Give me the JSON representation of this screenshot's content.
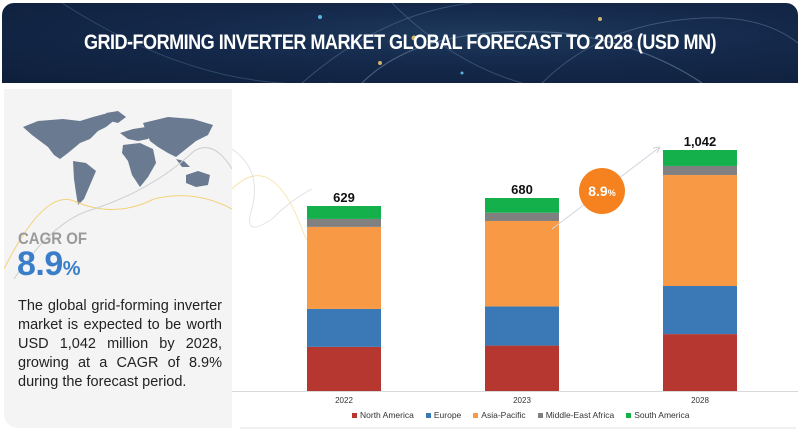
{
  "header": {
    "title": "GRID-FORMING INVERTER MARKET GLOBAL FORECAST TO 2028 (USD MN)"
  },
  "left_panel": {
    "map_icon": "world-map-icon",
    "cagr_label": "CAGR OF",
    "cagr_value": "8.9",
    "cagr_unit": "%",
    "summary": "The global grid-forming inverter market is expected to be worth USD 1,042 million by 2028, growing at a CAGR of 8.9% during the forecast period."
  },
  "colors": {
    "north_america": "#b5372f",
    "europe": "#3a78b6",
    "asia_pacific": "#f89a45",
    "middle_east_africa": "#808080",
    "south_america": "#14b04c",
    "cagr_badge": "#f5821f",
    "accent_blue": "#3a7dc9"
  },
  "chart_data": {
    "type": "bar",
    "stacked": true,
    "title": "GRID-FORMING INVERTER MARKET GLOBAL FORECAST TO 2028 (USD MN)",
    "xlabel": "",
    "ylabel": "",
    "categories": [
      "2022",
      "2023",
      "2028"
    ],
    "totals": [
      "629",
      "680",
      "1,042"
    ],
    "total_values": [
      629,
      680,
      1042
    ],
    "series": [
      {
        "name": "North America",
        "color": "#b5372f",
        "values": [
          150,
          160,
          246
        ]
      },
      {
        "name": "Europe",
        "color": "#3a78b6",
        "values": [
          129,
          138,
          208
        ]
      },
      {
        "name": "Asia-Pacific",
        "color": "#f89a45",
        "values": [
          279,
          301,
          480
        ]
      },
      {
        "name": "Middle-East Africa",
        "color": "#808080",
        "values": [
          27,
          29,
          39
        ]
      },
      {
        "name": "South America",
        "color": "#14b04c",
        "values": [
          44,
          52,
          69
        ]
      }
    ],
    "annotation": {
      "label": "8.9",
      "unit": "%",
      "meaning": "CAGR 2023-2028"
    },
    "legend": {
      "placement": "bottom",
      "entries": [
        "North America",
        "Europe",
        "Asia-Pacific",
        "Middle-East Africa",
        "South America"
      ]
    },
    "grid": false,
    "ylim": [
      0,
      1042
    ]
  }
}
